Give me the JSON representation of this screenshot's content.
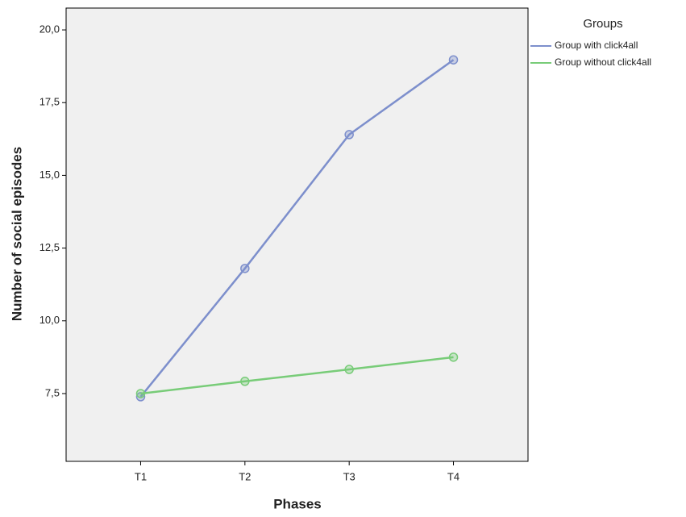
{
  "chart_data": {
    "type": "line",
    "xlabel": "Phases",
    "ylabel": "Number of social episodes",
    "legend_title": "Groups",
    "legend_position": "right",
    "categories": [
      "T1",
      "T2",
      "T3",
      "T4"
    ],
    "series": [
      {
        "name": "Group with click4all",
        "color": "#7d8fcc",
        "values": [
          7.39,
          11.8,
          16.4,
          18.97
        ]
      },
      {
        "name": "Group without click4all",
        "color": "#78cc78",
        "values": [
          7.5,
          7.92,
          8.33,
          8.75
        ]
      }
    ],
    "ylim": [
      5.17,
      20.75
    ],
    "yticks": [
      {
        "value": 7.5,
        "label": "7,5"
      },
      {
        "value": 10,
        "label": "10,0"
      },
      {
        "value": 12.5,
        "label": "12,5"
      },
      {
        "value": 15,
        "label": "15,0"
      },
      {
        "value": 17.5,
        "label": "17,5"
      },
      {
        "value": 20,
        "label": "20,0"
      }
    ]
  }
}
